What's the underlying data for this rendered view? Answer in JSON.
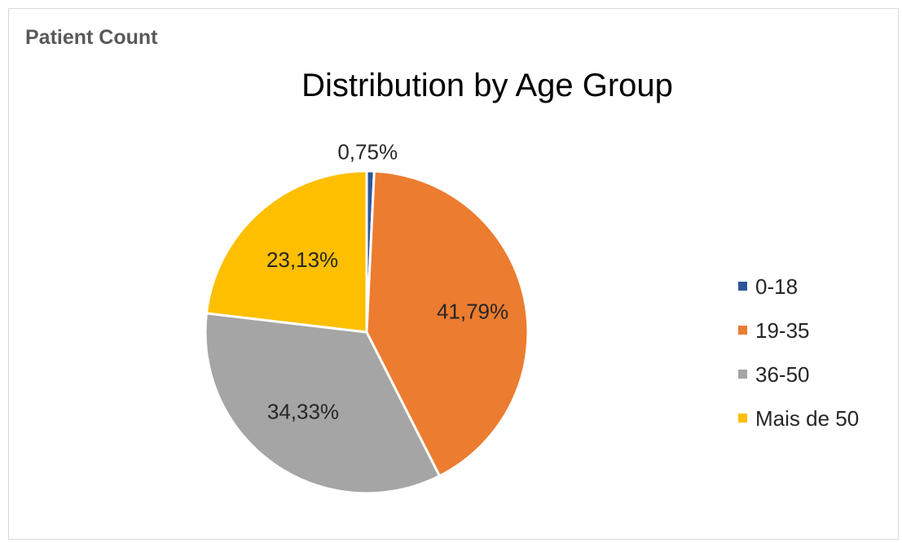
{
  "header": {
    "title": "Patient Count"
  },
  "colors": {
    "background": "#ffffff",
    "border": "#d9d9d9"
  },
  "chart_data": {
    "type": "pie",
    "title": "Distribution by Age Group",
    "categories": [
      "0-18",
      "19-35",
      "36-50",
      "Mais de 50"
    ],
    "values": [
      0.75,
      41.79,
      34.33,
      23.13
    ],
    "labels": [
      "0,75%",
      "41,79%",
      "34,33%",
      "23,13%"
    ],
    "colors": [
      "#2e5597",
      "#ec7c30",
      "#a5a5a5",
      "#fdbf00"
    ],
    "start_angle_deg": 0,
    "direction": "clockwise",
    "legend": {
      "placement": "right"
    }
  }
}
